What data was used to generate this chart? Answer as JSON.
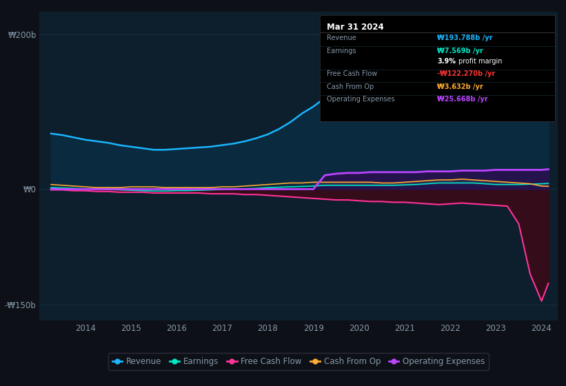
{
  "bg_color": "#0d1117",
  "plot_bg_color": "#0d1f2d",
  "text_color": "#8899aa",
  "years": [
    2013.25,
    2013.5,
    2013.75,
    2014.0,
    2014.25,
    2014.5,
    2014.75,
    2015.0,
    2015.25,
    2015.5,
    2015.75,
    2016.0,
    2016.25,
    2016.5,
    2016.75,
    2017.0,
    2017.25,
    2017.5,
    2017.75,
    2018.0,
    2018.25,
    2018.5,
    2018.75,
    2019.0,
    2019.25,
    2019.5,
    2019.75,
    2020.0,
    2020.25,
    2020.5,
    2020.75,
    2021.0,
    2021.25,
    2021.5,
    2021.75,
    2022.0,
    2022.25,
    2022.5,
    2022.75,
    2023.0,
    2023.25,
    2023.5,
    2023.75,
    2024.0,
    2024.15
  ],
  "revenue": [
    72,
    70,
    67,
    64,
    62,
    60,
    57,
    55,
    53,
    51,
    51,
    52,
    53,
    54,
    55,
    57,
    59,
    62,
    66,
    71,
    78,
    87,
    98,
    107,
    118,
    126,
    130,
    135,
    140,
    143,
    146,
    150,
    157,
    165,
    172,
    180,
    192,
    200,
    196,
    187,
    178,
    170,
    178,
    192,
    194
  ],
  "earnings": [
    2,
    1.5,
    1,
    0.5,
    0,
    -0.5,
    -1,
    -1.5,
    -2,
    -2.5,
    -2.5,
    -2,
    -2,
    -1.5,
    -1,
    -0.5,
    0,
    0.5,
    1,
    2,
    2.5,
    3,
    3.5,
    4,
    5,
    5,
    5,
    5,
    5,
    5,
    5,
    5.5,
    6,
    7,
    8,
    8,
    8,
    8,
    7,
    6,
    6,
    6,
    6.5,
    7,
    7.5
  ],
  "free_cash_flow": [
    -1,
    -1,
    -2,
    -2,
    -3,
    -3,
    -4,
    -4,
    -4,
    -5,
    -5,
    -5,
    -5,
    -5,
    -6,
    -6,
    -6,
    -7,
    -7,
    -8,
    -9,
    -10,
    -11,
    -12,
    -13,
    -14,
    -14,
    -15,
    -16,
    -16,
    -17,
    -17,
    -18,
    -19,
    -20,
    -19,
    -18,
    -19,
    -20,
    -21,
    -22,
    -45,
    -110,
    -145,
    -122
  ],
  "cash_from_op": [
    6,
    5,
    4,
    3,
    2,
    2,
    2,
    3,
    3,
    3,
    2,
    2,
    2,
    2,
    2,
    3,
    3,
    4,
    5,
    6,
    7,
    8,
    8,
    9,
    9,
    9,
    9,
    9,
    9,
    8,
    8,
    9,
    10,
    11,
    12,
    12,
    13,
    12,
    11,
    10,
    9,
    8,
    7,
    4,
    3.6
  ],
  "operating_expenses": [
    0,
    0,
    0,
    0,
    0,
    0,
    0,
    0,
    0,
    0,
    0,
    0,
    0,
    0,
    0,
    0,
    0,
    0,
    0,
    0,
    0,
    0,
    0,
    0,
    18,
    20,
    21,
    21,
    22,
    22,
    22,
    22,
    22,
    23,
    23,
    23,
    24,
    24,
    24,
    25,
    25,
    25,
    25,
    25,
    25.7
  ],
  "revenue_color": "#1ab6ff",
  "earnings_color": "#00e8c8",
  "free_cash_flow_color": "#ff3399",
  "cash_from_op_color": "#ffaa33",
  "op_expenses_color": "#bb44ff",
  "revenue_fill": "#0a2a40",
  "fcf_fill": "#3a0a18",
  "op_exp_fill": "#2a1050",
  "gray_fill": "#334455",
  "ylim": [
    -170,
    230
  ],
  "yticks": [
    -150,
    0,
    200
  ],
  "ytick_labels": [
    "-₩150b",
    "₩0",
    "₩200b"
  ],
  "xlim_start": 2013.0,
  "xlim_end": 2024.35,
  "xtick_years": [
    2014,
    2015,
    2016,
    2017,
    2018,
    2019,
    2020,
    2021,
    2022,
    2023,
    2024
  ],
  "tooltip_title": "Mar 31 2024",
  "tooltip_rows": [
    {
      "label": "Revenue",
      "value": "₩193.788b /yr",
      "color": "#1ab6ff"
    },
    {
      "label": "Earnings",
      "value": "₩7.569b /yr",
      "color": "#00e8c8"
    },
    {
      "label": "",
      "value": "",
      "color": "#ffffff"
    },
    {
      "label": "Free Cash Flow",
      "value": "-₩122.270b /yr",
      "color": "#ff3333"
    },
    {
      "label": "Cash From Op",
      "value": "₩3.632b /yr",
      "color": "#ffaa33"
    },
    {
      "label": "Operating Expenses",
      "value": "₩25.668b /yr",
      "color": "#bb44ff"
    }
  ],
  "legend_items": [
    {
      "label": "Revenue",
      "color": "#1ab6ff"
    },
    {
      "label": "Earnings",
      "color": "#00e8c8"
    },
    {
      "label": "Free Cash Flow",
      "color": "#ff3399"
    },
    {
      "label": "Cash From Op",
      "color": "#ffaa33"
    },
    {
      "label": "Operating Expenses",
      "color": "#bb44ff"
    }
  ]
}
